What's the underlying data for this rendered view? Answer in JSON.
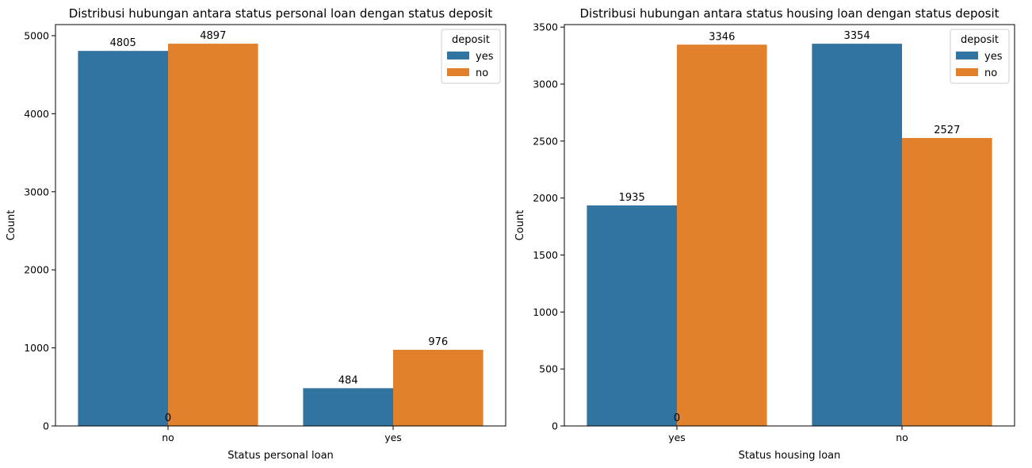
{
  "chart_data": [
    {
      "type": "bar",
      "title": "Distribusi hubungan antara status personal loan dengan status deposit",
      "xlabel": "Status personal loan",
      "ylabel": "Count",
      "categories": [
        "no",
        "yes"
      ],
      "series": [
        {
          "name": "yes",
          "values": [
            4805,
            484
          ],
          "color": "#3274a1"
        },
        {
          "name": "no",
          "values": [
            4897,
            976
          ],
          "color": "#e1812c"
        }
      ],
      "ylim": [
        0,
        5142
      ],
      "yticks": [
        0,
        1000,
        2000,
        3000,
        4000,
        5000
      ],
      "legend": {
        "title": "deposit",
        "position": "top-right"
      },
      "extra_data_labels": [
        {
          "text": "0",
          "category": "no",
          "value": 0
        }
      ],
      "grid": false
    },
    {
      "type": "bar",
      "title": "Distribusi hubungan antara status housing loan dengan status deposit",
      "xlabel": "Status housing loan",
      "ylabel": "Count",
      "categories": [
        "yes",
        "no"
      ],
      "series": [
        {
          "name": "yes",
          "values": [
            1935,
            3354
          ],
          "color": "#3274a1"
        },
        {
          "name": "no",
          "values": [
            3346,
            2527
          ],
          "color": "#e1812c"
        }
      ],
      "ylim": [
        0,
        3522
      ],
      "yticks": [
        0,
        500,
        1000,
        1500,
        2000,
        2500,
        3000,
        3500
      ],
      "legend": {
        "title": "deposit",
        "position": "top-right"
      },
      "extra_data_labels": [
        {
          "text": "0",
          "category": "yes",
          "value": 0
        }
      ],
      "grid": false
    }
  ]
}
